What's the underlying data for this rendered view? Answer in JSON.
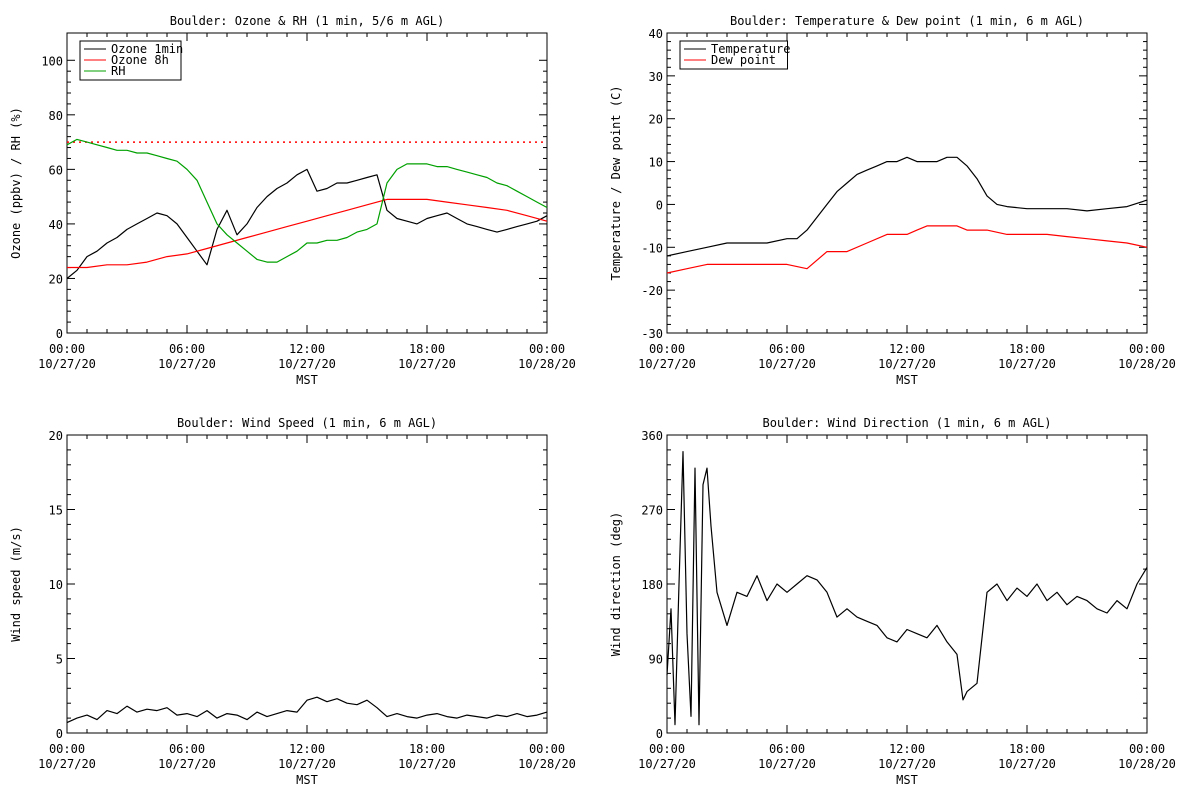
{
  "x_ticks_time": [
    "00:00",
    "06:00",
    "12:00",
    "18:00",
    "00:00"
  ],
  "x_ticks_date": [
    "10/27/20",
    "10/27/20",
    "10/27/20",
    "10/27/20",
    "10/28/20"
  ],
  "xlabel": "MST",
  "chart_data": [
    {
      "type": "line",
      "title": "Boulder: Ozone & RH (1 min, 5/6 m AGL)",
      "ylabel": "Ozone (ppbv) / RH (%)",
      "xlim": [
        0,
        24
      ],
      "ylim": [
        0,
        110
      ],
      "yticks": [
        0,
        20,
        40,
        60,
        80,
        100
      ],
      "legend": "top-left",
      "reference_line": {
        "y": 70,
        "color": "#ff0000",
        "style": "dotted"
      },
      "series": [
        {
          "name": "Ozone 1min",
          "color": "#000000",
          "x": [
            0,
            0.5,
            1,
            1.5,
            2,
            2.5,
            3,
            3.5,
            4,
            4.5,
            5,
            5.5,
            6,
            6.5,
            7,
            7.5,
            8,
            8.5,
            9,
            9.5,
            10,
            10.5,
            11,
            11.5,
            12,
            12.5,
            13,
            13.5,
            14,
            14.5,
            15,
            15.5,
            16,
            16.5,
            17,
            17.5,
            18,
            18.5,
            19,
            19.5,
            20,
            20.5,
            21,
            21.5,
            22,
            22.5,
            23,
            23.5,
            24
          ],
          "y": [
            20,
            23,
            28,
            30,
            33,
            35,
            38,
            40,
            42,
            44,
            43,
            40,
            35,
            30,
            25,
            38,
            45,
            36,
            40,
            46,
            50,
            53,
            55,
            58,
            60,
            52,
            53,
            55,
            55,
            56,
            57,
            58,
            45,
            42,
            41,
            40,
            42,
            43,
            44,
            42,
            40,
            39,
            38,
            37,
            38,
            39,
            40,
            41,
            43
          ]
        },
        {
          "name": "Ozone 8h",
          "color": "#ff0000",
          "x": [
            0,
            1,
            2,
            3,
            4,
            5,
            6,
            7,
            8,
            9,
            10,
            11,
            12,
            13,
            14,
            15,
            16,
            17,
            18,
            19,
            20,
            21,
            22,
            23,
            24
          ],
          "y": [
            24,
            24,
            25,
            25,
            26,
            28,
            29,
            31,
            33,
            35,
            37,
            39,
            41,
            43,
            45,
            47,
            49,
            49,
            49,
            48,
            47,
            46,
            45,
            43,
            41
          ]
        },
        {
          "name": "RH",
          "color": "#00a000",
          "x": [
            0,
            0.5,
            1,
            1.5,
            2,
            2.5,
            3,
            3.5,
            4,
            4.5,
            5,
            5.5,
            6,
            6.5,
            7,
            7.5,
            8,
            8.5,
            9,
            9.5,
            10,
            10.5,
            11,
            11.5,
            12,
            12.5,
            13,
            13.5,
            14,
            14.5,
            15,
            15.5,
            16,
            16.5,
            17,
            17.5,
            18,
            18.5,
            19,
            19.5,
            20,
            20.5,
            21,
            21.5,
            22,
            22.5,
            23,
            23.5,
            24
          ],
          "y": [
            69,
            71,
            70,
            69,
            68,
            67,
            67,
            66,
            66,
            65,
            64,
            63,
            60,
            56,
            48,
            40,
            36,
            33,
            30,
            27,
            26,
            26,
            28,
            30,
            33,
            33,
            34,
            34,
            35,
            37,
            38,
            40,
            55,
            60,
            62,
            62,
            62,
            61,
            61,
            60,
            59,
            58,
            57,
            55,
            54,
            52,
            50,
            48,
            46
          ]
        }
      ]
    },
    {
      "type": "line",
      "title": "Boulder: Temperature & Dew point (1 min, 6 m AGL)",
      "ylabel": "Temperature / Dew point (C)",
      "xlim": [
        0,
        24
      ],
      "ylim": [
        -30,
        40
      ],
      "yticks": [
        -30,
        -20,
        -10,
        0,
        10,
        20,
        30,
        40
      ],
      "legend": "top-left",
      "series": [
        {
          "name": "Temperature",
          "color": "#000000",
          "x": [
            0,
            1,
            2,
            3,
            4,
            5,
            6,
            6.5,
            7,
            7.5,
            8,
            8.5,
            9,
            9.5,
            10,
            10.5,
            11,
            11.5,
            12,
            12.5,
            13,
            13.5,
            14,
            14.5,
            15,
            15.5,
            16,
            16.5,
            17,
            18,
            19,
            20,
            21,
            22,
            23,
            24
          ],
          "y": [
            -12,
            -11,
            -10,
            -9,
            -9,
            -9,
            -8,
            -8,
            -6,
            -3,
            0,
            3,
            5,
            7,
            8,
            9,
            10,
            10,
            11,
            10,
            10,
            10,
            11,
            11,
            9,
            6,
            2,
            0,
            -0.5,
            -1,
            -1,
            -1,
            -1.5,
            -1,
            -0.5,
            1
          ]
        },
        {
          "name": "Dew point",
          "color": "#ff0000",
          "x": [
            0,
            1,
            2,
            3,
            4,
            5,
            6,
            7,
            8,
            9,
            10,
            11,
            12,
            12.5,
            13,
            13.5,
            14,
            14.5,
            15,
            16,
            17,
            18,
            19,
            20,
            21,
            22,
            23,
            24
          ],
          "y": [
            -16,
            -15,
            -14,
            -14,
            -14,
            -14,
            -14,
            -15,
            -11,
            -11,
            -9,
            -7,
            -7,
            -6,
            -5,
            -5,
            -5,
            -5,
            -6,
            -6,
            -7,
            -7,
            -7,
            -7.5,
            -8,
            -8.5,
            -9,
            -10
          ]
        }
      ]
    },
    {
      "type": "line",
      "title": "Boulder: Wind Speed (1 min, 6 m AGL)",
      "ylabel": "Wind speed (m/s)",
      "xlim": [
        0,
        24
      ],
      "ylim": [
        0,
        20
      ],
      "yticks": [
        0,
        5,
        10,
        15,
        20
      ],
      "series": [
        {
          "color": "#000000",
          "x": [
            0,
            0.5,
            1,
            1.5,
            2,
            2.5,
            3,
            3.5,
            4,
            4.5,
            5,
            5.5,
            6,
            6.5,
            7,
            7.5,
            8,
            8.5,
            9,
            9.5,
            10,
            10.5,
            11,
            11.5,
            12,
            12.5,
            13,
            13.5,
            14,
            14.5,
            15,
            15.5,
            16,
            16.5,
            17,
            17.5,
            18,
            18.5,
            19,
            19.5,
            20,
            20.5,
            21,
            21.5,
            22,
            22.5,
            23,
            23.5,
            24
          ],
          "y": [
            0.7,
            1.0,
            1.2,
            0.9,
            1.5,
            1.3,
            1.8,
            1.4,
            1.6,
            1.5,
            1.7,
            1.2,
            1.3,
            1.1,
            1.5,
            1.0,
            1.3,
            1.2,
            0.9,
            1.4,
            1.1,
            1.3,
            1.5,
            1.4,
            2.2,
            2.4,
            2.1,
            2.3,
            2.0,
            1.9,
            2.2,
            1.7,
            1.1,
            1.3,
            1.1,
            1.0,
            1.2,
            1.3,
            1.1,
            1.0,
            1.2,
            1.1,
            1.0,
            1.2,
            1.1,
            1.3,
            1.1,
            1.2,
            1.4
          ]
        }
      ]
    },
    {
      "type": "line",
      "title": "Boulder: Wind Direction (1 min, 6 m AGL)",
      "ylabel": "Wind direction (deg)",
      "xlim": [
        0,
        24
      ],
      "ylim": [
        0,
        360
      ],
      "yticks": [
        0,
        90,
        180,
        270,
        360
      ],
      "series": [
        {
          "color": "#000000",
          "x": [
            0,
            0.2,
            0.4,
            0.6,
            0.8,
            1,
            1.2,
            1.4,
            1.6,
            1.8,
            2,
            2.2,
            2.5,
            3,
            3.5,
            4,
            4.5,
            5,
            5.5,
            6,
            6.5,
            7,
            7.5,
            8,
            8.5,
            9,
            9.5,
            10,
            10.5,
            11,
            11.5,
            12,
            12.5,
            13,
            13.5,
            14,
            14.5,
            14.8,
            15,
            15.5,
            16,
            16.5,
            17,
            17.5,
            18,
            18.5,
            19,
            19.5,
            20,
            20.5,
            21,
            21.5,
            22,
            22.5,
            23,
            23.5,
            24
          ],
          "y": [
            70,
            150,
            10,
            180,
            340,
            120,
            20,
            320,
            10,
            300,
            320,
            250,
            170,
            130,
            170,
            165,
            190,
            160,
            180,
            170,
            180,
            190,
            185,
            170,
            140,
            150,
            140,
            135,
            130,
            115,
            110,
            125,
            120,
            115,
            130,
            110,
            95,
            40,
            50,
            60,
            170,
            180,
            160,
            175,
            165,
            180,
            160,
            170,
            155,
            165,
            160,
            150,
            145,
            160,
            150,
            180,
            200
          ]
        }
      ]
    }
  ]
}
